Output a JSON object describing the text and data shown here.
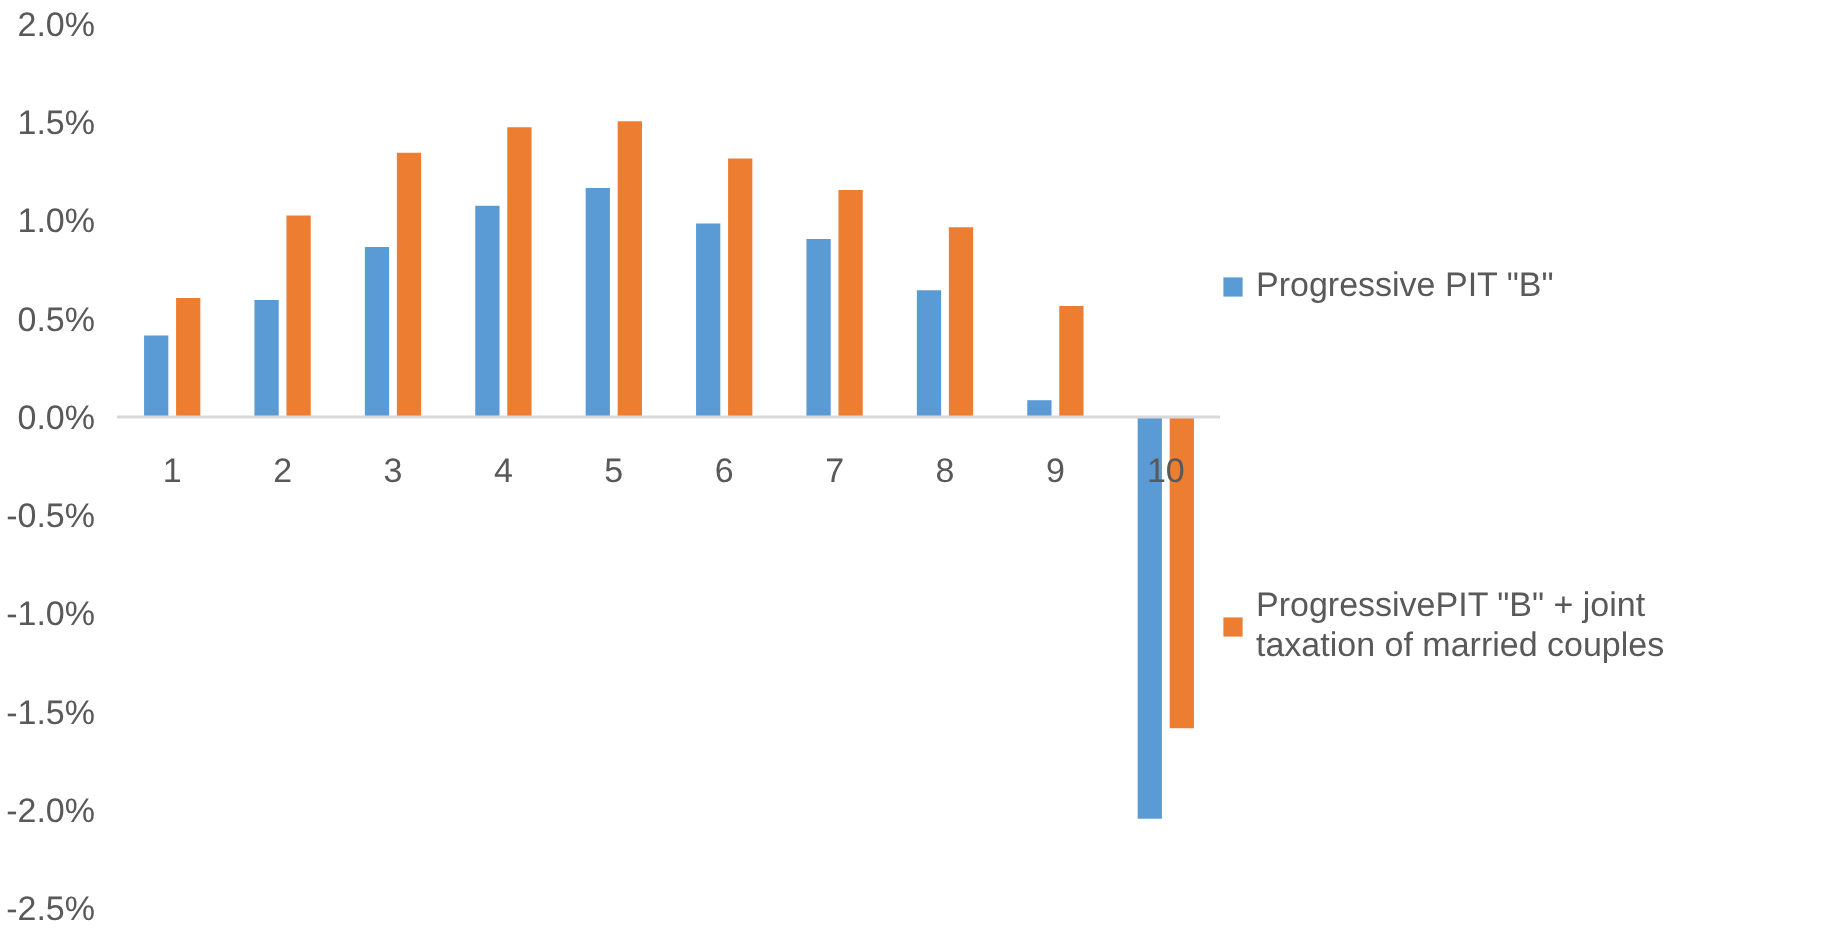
{
  "chart_data": {
    "type": "bar",
    "categories": [
      "1",
      "2",
      "3",
      "4",
      "5",
      "6",
      "7",
      "8",
      "9",
      "10"
    ],
    "series": [
      {
        "name": "Progressive PIT \"B\"",
        "color": "#5b9bd5",
        "values": [
          0.42,
          0.6,
          0.87,
          1.08,
          1.17,
          0.99,
          0.91,
          0.65,
          0.09,
          -2.04
        ]
      },
      {
        "name": "ProgressivePIT \"B\" + joint taxation of married couples",
        "color": "#ed7d31",
        "values": [
          0.61,
          1.03,
          1.35,
          1.48,
          1.51,
          1.32,
          1.16,
          0.97,
          0.57,
          -1.58
        ]
      }
    ],
    "ylim": [
      -2.5,
      2.0
    ],
    "yticks": [
      {
        "value": -2.5,
        "label": "-2.5%"
      },
      {
        "value": -2.0,
        "label": "-2.0%"
      },
      {
        "value": -1.5,
        "label": "-1.5%"
      },
      {
        "value": -1.0,
        "label": "-1.0%"
      },
      {
        "value": -0.5,
        "label": "-0.5%"
      },
      {
        "value": 0.0,
        "label": "0.0%"
      },
      {
        "value": 0.5,
        "label": "0.5%"
      },
      {
        "value": 1.0,
        "label": "1.0%"
      },
      {
        "value": 1.5,
        "label": "1.5%"
      },
      {
        "value": 2.0,
        "label": "2.0%"
      }
    ],
    "grid": false,
    "legend": "right"
  }
}
